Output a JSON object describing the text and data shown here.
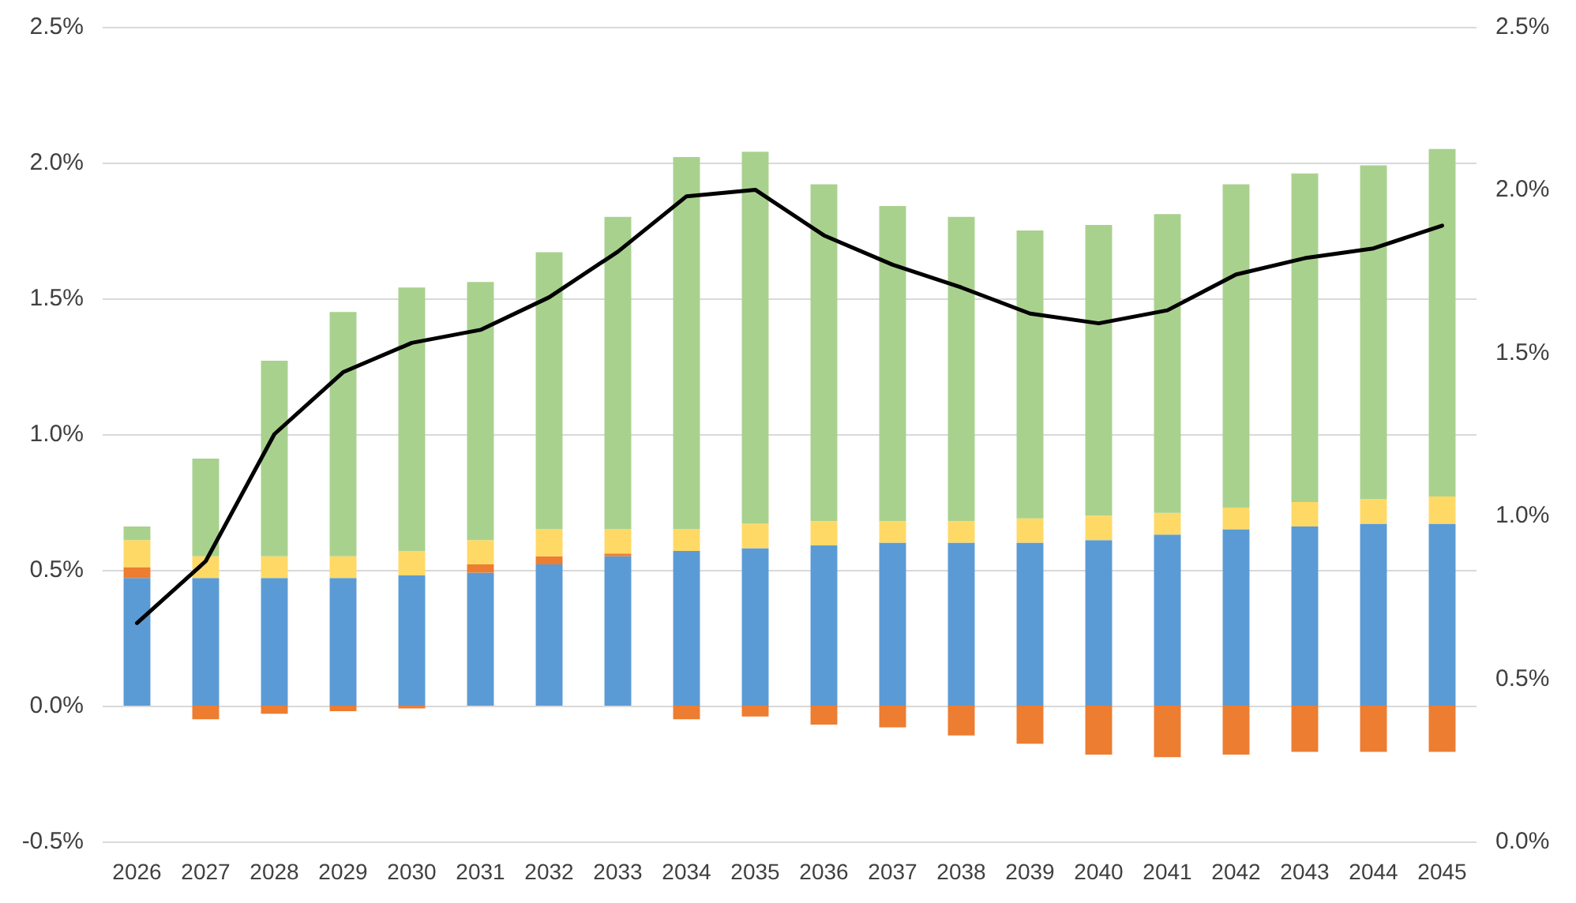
{
  "chart_data": {
    "type": "bar",
    "stacked": true,
    "grid": "y",
    "marker": "none",
    "categories": [
      "2026",
      "2027",
      "2028",
      "2029",
      "2030",
      "2031",
      "2032",
      "2033",
      "2034",
      "2035",
      "2036",
      "2037",
      "2038",
      "2039",
      "2040",
      "2041",
      "2042",
      "2043",
      "2044",
      "2045"
    ],
    "series": [
      {
        "color": "#5b9bd5",
        "values": [
          0.47,
          0.47,
          0.47,
          0.47,
          0.48,
          0.49,
          0.52,
          0.55,
          0.57,
          0.58,
          0.59,
          0.6,
          0.6,
          0.6,
          0.61,
          0.63,
          0.65,
          0.66,
          0.67,
          0.67
        ]
      },
      {
        "color": "#ed7d31",
        "values": [
          0.04,
          -0.05,
          -0.03,
          -0.02,
          -0.01,
          0.03,
          0.03,
          0.01,
          -0.05,
          -0.04,
          -0.07,
          -0.08,
          -0.11,
          -0.14,
          -0.18,
          -0.19,
          -0.18,
          -0.17,
          -0.17,
          -0.17
        ]
      },
      {
        "color": "#ffd966",
        "values": [
          0.1,
          0.08,
          0.08,
          0.08,
          0.09,
          0.09,
          0.1,
          0.09,
          0.08,
          0.09,
          0.09,
          0.08,
          0.08,
          0.09,
          0.09,
          0.08,
          0.08,
          0.09,
          0.09,
          0.1
        ]
      },
      {
        "color": "#a9d18e",
        "values": [
          0.05,
          0.36,
          0.72,
          0.9,
          0.97,
          0.95,
          1.02,
          1.15,
          1.37,
          1.37,
          1.24,
          1.16,
          1.12,
          1.06,
          1.07,
          1.1,
          1.19,
          1.21,
          1.23,
          1.28
        ]
      },
      {
        "type": "line",
        "axis": "y2",
        "color": "#000000",
        "values": [
          0.67,
          0.86,
          1.25,
          1.44,
          1.53,
          1.57,
          1.67,
          1.81,
          1.98,
          2.0,
          1.86,
          1.77,
          1.7,
          1.62,
          1.59,
          1.63,
          1.74,
          1.79,
          1.82,
          1.89
        ]
      }
    ],
    "ylim": [
      -0.5,
      2.5
    ],
    "yticks": [
      {
        "value": -0.5,
        "label": "-0.5%"
      },
      {
        "value": 0,
        "label": "0.0%"
      },
      {
        "value": 0.5,
        "label": "0.5%"
      },
      {
        "value": 1,
        "label": "1.0%"
      },
      {
        "value": 1.5,
        "label": "1.5%"
      },
      {
        "value": 2,
        "label": "2.0%"
      },
      {
        "value": 2.5,
        "label": "2.5%"
      }
    ],
    "y2lim": [
      0,
      2.5
    ],
    "y2ticks": [
      {
        "value": 0,
        "label": "0.0%"
      },
      {
        "value": 0.5,
        "label": "0.5%"
      },
      {
        "value": 1,
        "label": "1.0%"
      },
      {
        "value": 1.5,
        "label": "1.5%"
      },
      {
        "value": 2,
        "label": "2.0%"
      },
      {
        "value": 2.5,
        "label": "2.5%"
      }
    ]
  }
}
